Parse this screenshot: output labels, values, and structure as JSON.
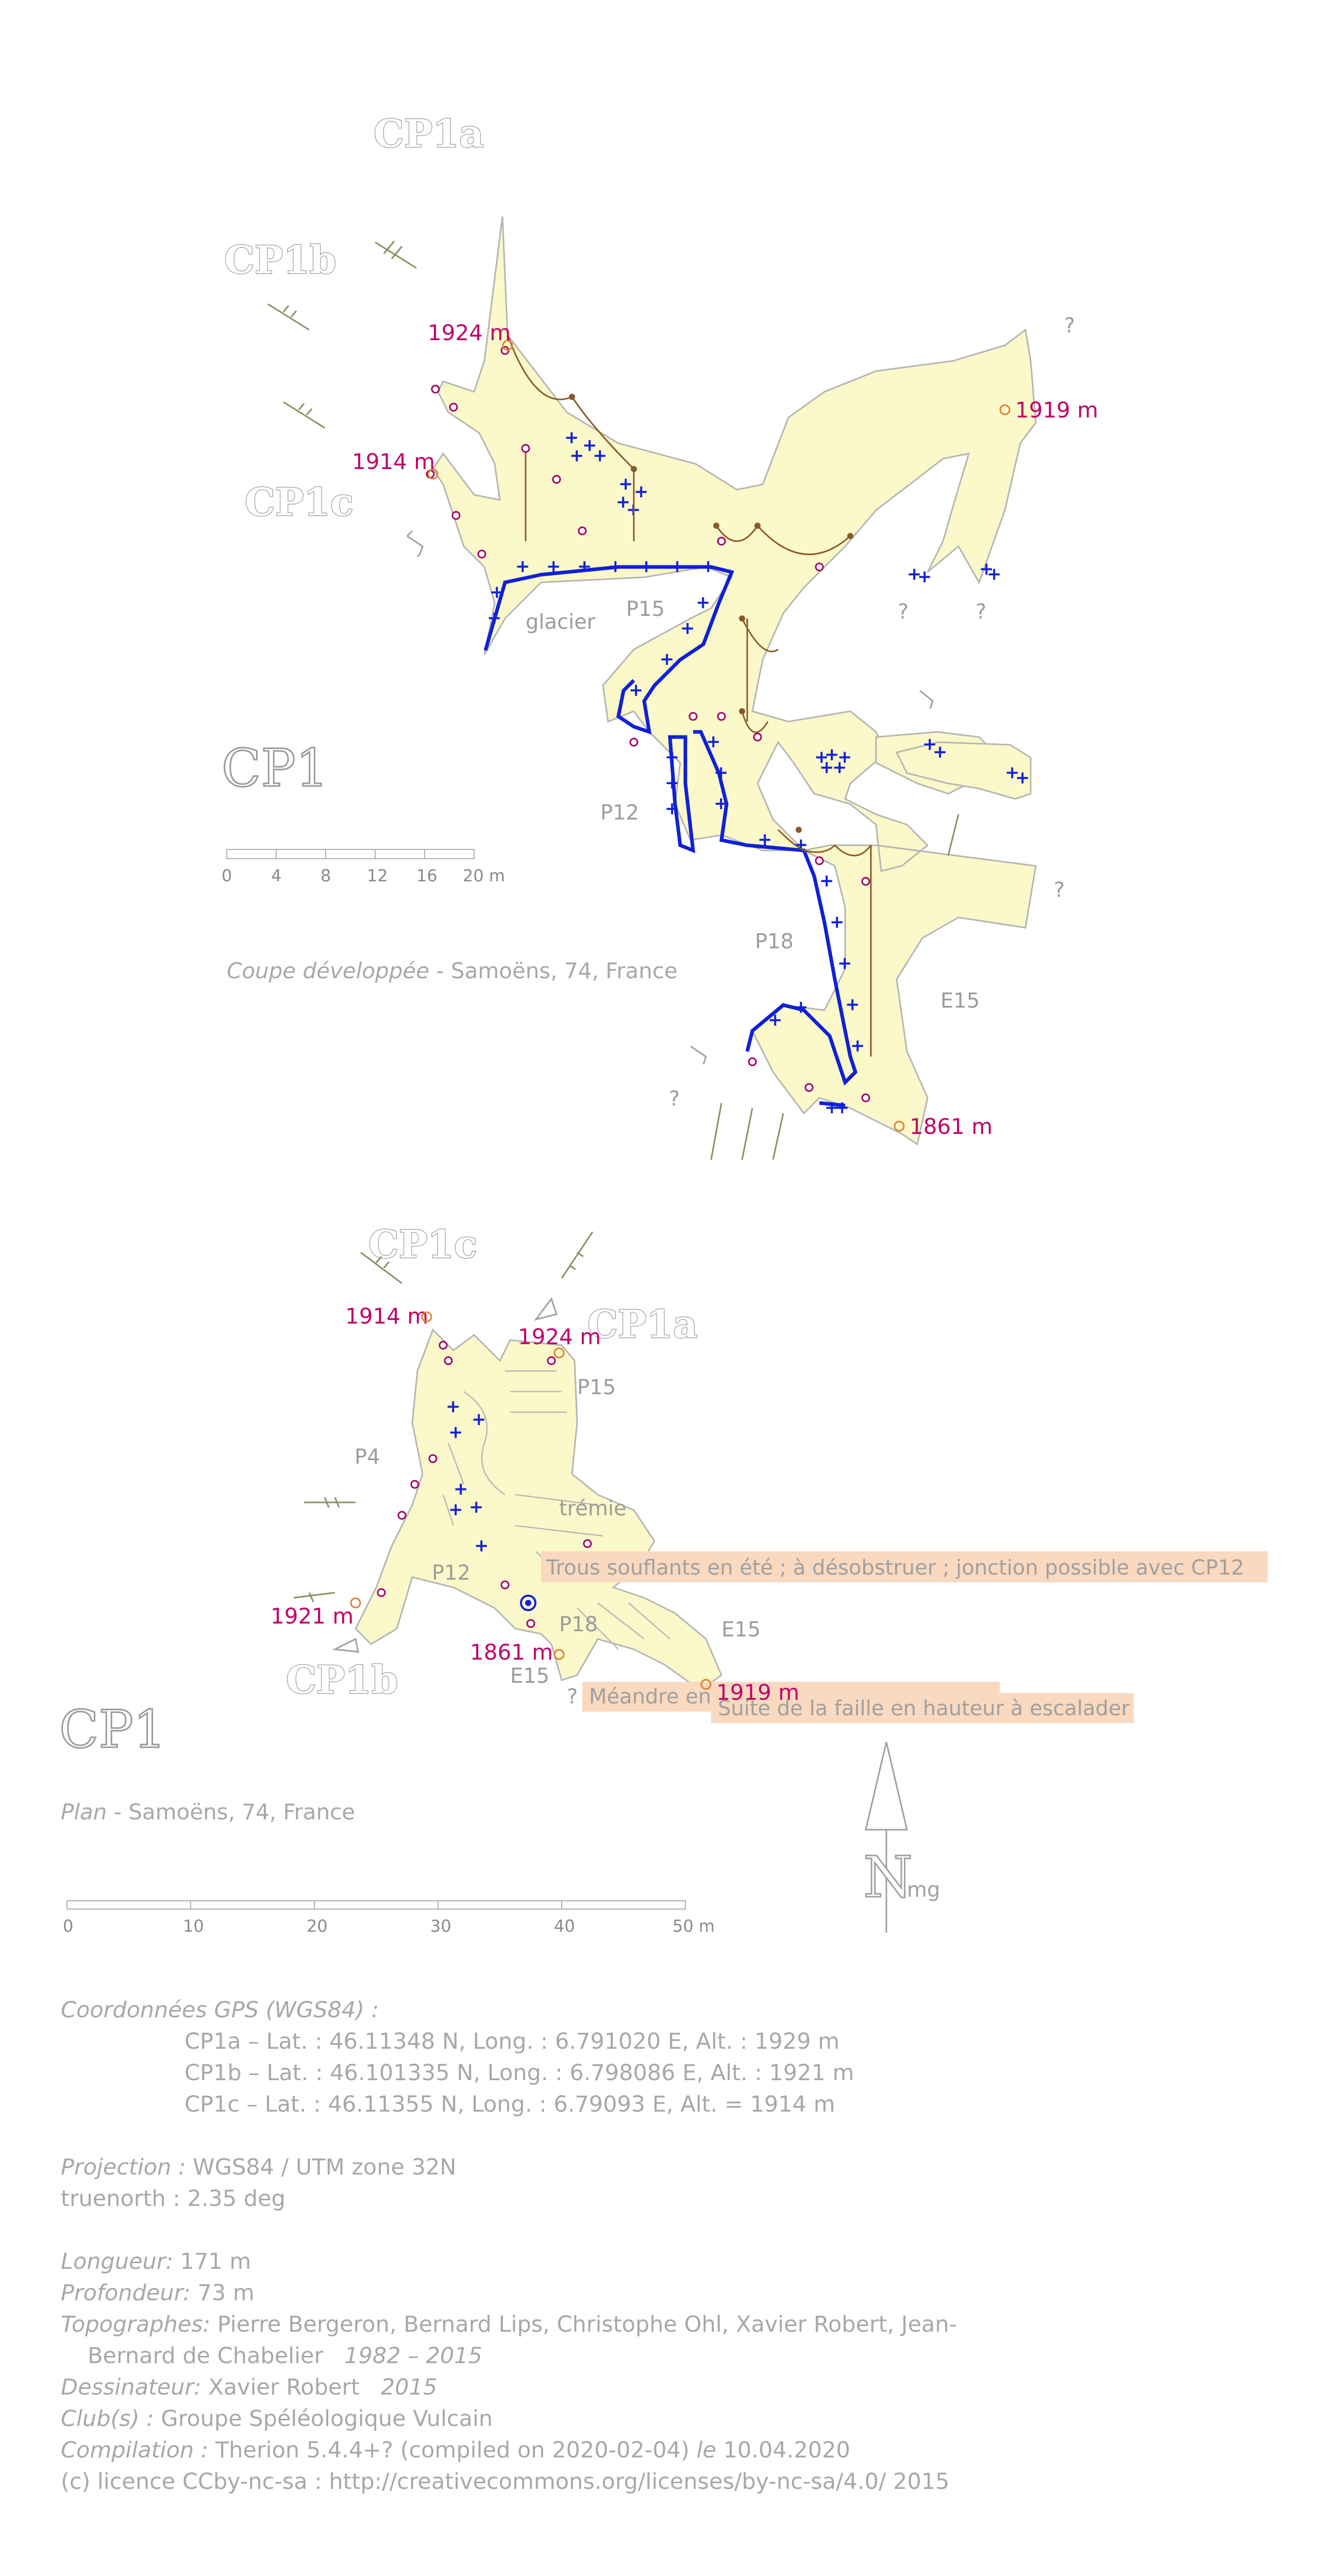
{
  "section_view": {
    "entrance_labels": {
      "cp1a": "CP1a",
      "cp1b": "CP1b",
      "cp1c": "CP1c"
    },
    "altitudes": [
      "1924 m",
      "1919 m",
      "1914 m",
      "1861 m"
    ],
    "feature_labels": {
      "p15": "P15",
      "glacier": "glacier",
      "p12": "P12",
      "p18": "P18",
      "e15": "E15"
    },
    "question_mark": "?",
    "title": "CP1",
    "scale_ticks": [
      "0",
      "4",
      "8",
      "12",
      "16",
      "20 m"
    ],
    "caption_type": "Coupe développée",
    "caption_place": " - Samoëns, 74, France"
  },
  "plan_view": {
    "entrance_labels": {
      "cp1c": "CP1c",
      "cp1a": "CP1a",
      "cp1b": "CP1b"
    },
    "altitudes": [
      "1914 m",
      "1924 m",
      "1921 m",
      "1861 m",
      "1919 m"
    ],
    "feature_labels": {
      "p15": "P15",
      "p4": "P4",
      "tremie": "trémie",
      "p12": "P12",
      "p18": "P18",
      "e15": "E15",
      "e15b": "E15"
    },
    "notes": {
      "trous": "Trous souflants en été ; à désobstruer ; jonction possible avec CP12",
      "meandre": "Méandre en",
      "faille": "Suite de la faille en hauteur à escalader"
    },
    "title": "CP1",
    "caption_type": "Plan",
    "caption_place": " - Samoëns, 74, France",
    "scale_ticks": [
      "0",
      "10",
      "20",
      "30",
      "40",
      "50 m"
    ],
    "north": {
      "letter": "N",
      "suffix": "mg"
    }
  },
  "info": {
    "gps_key": "Coordonnées GPS (WGS84) :",
    "gps": [
      "CP1a – Lat. : 46.11348 N, Long. : 6.791020 E, Alt. : 1929 m",
      "CP1b – Lat. : 46.101335 N, Long. : 6.798086 E, Alt. : 1921 m",
      "CP1c – Lat. : 46.11355 N, Long. : 6.79093 E, Alt. = 1914 m"
    ],
    "projection_key": "Projection :",
    "projection_val": " WGS84 / UTM zone 32N",
    "truenorth": "truenorth : 2.35 deg",
    "longueur_key": "Longueur:",
    "longueur_val": " 171 m",
    "profondeur_key": "Profondeur:",
    "profondeur_val": " 73 m",
    "topographes_key": "Topographes:",
    "topographes_val": " Pierre Bergeron, Bernard Lips, Christophe Ohl, Xavier Robert, Jean-",
    "topographes_val2": "Bernard de Chabelier",
    "topographes_years": "1982 – 2015",
    "dessinateur_key": "Dessinateur:",
    "dessinateur_val": " Xavier Robert",
    "dessinateur_year": "2015",
    "clubs_key": "Club(s) :",
    "clubs_val": " Groupe Spéléologique Vulcain",
    "compilation_key": "Compilation :",
    "compilation_val": " Therion 5.4.4+? (compiled on 2020-02-04)",
    "compilation_le": "le",
    "compilation_date": " 10.04.2020",
    "licence": "(c) licence CCby-nc-sa : http://creativecommons.org/licenses/by-nc-sa/4.0/ 2015"
  },
  "colors": {
    "cave_fill": "#fbf8c9",
    "ice": "#1020d8",
    "altitude": "#c0006a",
    "pit": "#8a5a2b",
    "note_bg": "#f9d9bf",
    "text_gray": "#a8a8a8"
  }
}
